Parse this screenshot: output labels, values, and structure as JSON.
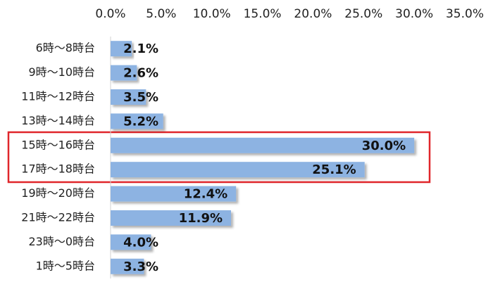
{
  "chart_data": {
    "type": "bar",
    "orientation": "horizontal",
    "categories": [
      "6時～8時台",
      "9時～10時台",
      "11時～12時台",
      "13時～14時台",
      "15時～16時台",
      "17時～18時台",
      "19時～20時台",
      "21時～22時台",
      "23時～0時台",
      "1時～5時台"
    ],
    "values": [
      2.1,
      2.6,
      3.5,
      5.2,
      30.0,
      25.1,
      12.4,
      11.9,
      4.0,
      3.3
    ],
    "value_labels": [
      "2.1%",
      "2.6%",
      "3.5%",
      "5.2%",
      "30.0%",
      "25.1%",
      "12.4%",
      "11.9%",
      "4.0%",
      "3.3%"
    ],
    "color": "#8db3e2",
    "xlim": [
      0,
      35
    ],
    "xticks": [
      {
        "value": 0,
        "label": "0.0%"
      },
      {
        "value": 5,
        "label": "5.0%"
      },
      {
        "value": 10,
        "label": "10.0%"
      },
      {
        "value": 15,
        "label": "15.0%"
      },
      {
        "value": 20,
        "label": "20.0%"
      },
      {
        "value": 25,
        "label": "25.0%"
      },
      {
        "value": 30,
        "label": "30.0%"
      },
      {
        "value": 35,
        "label": "35.0%"
      }
    ],
    "grid": false
  }
}
